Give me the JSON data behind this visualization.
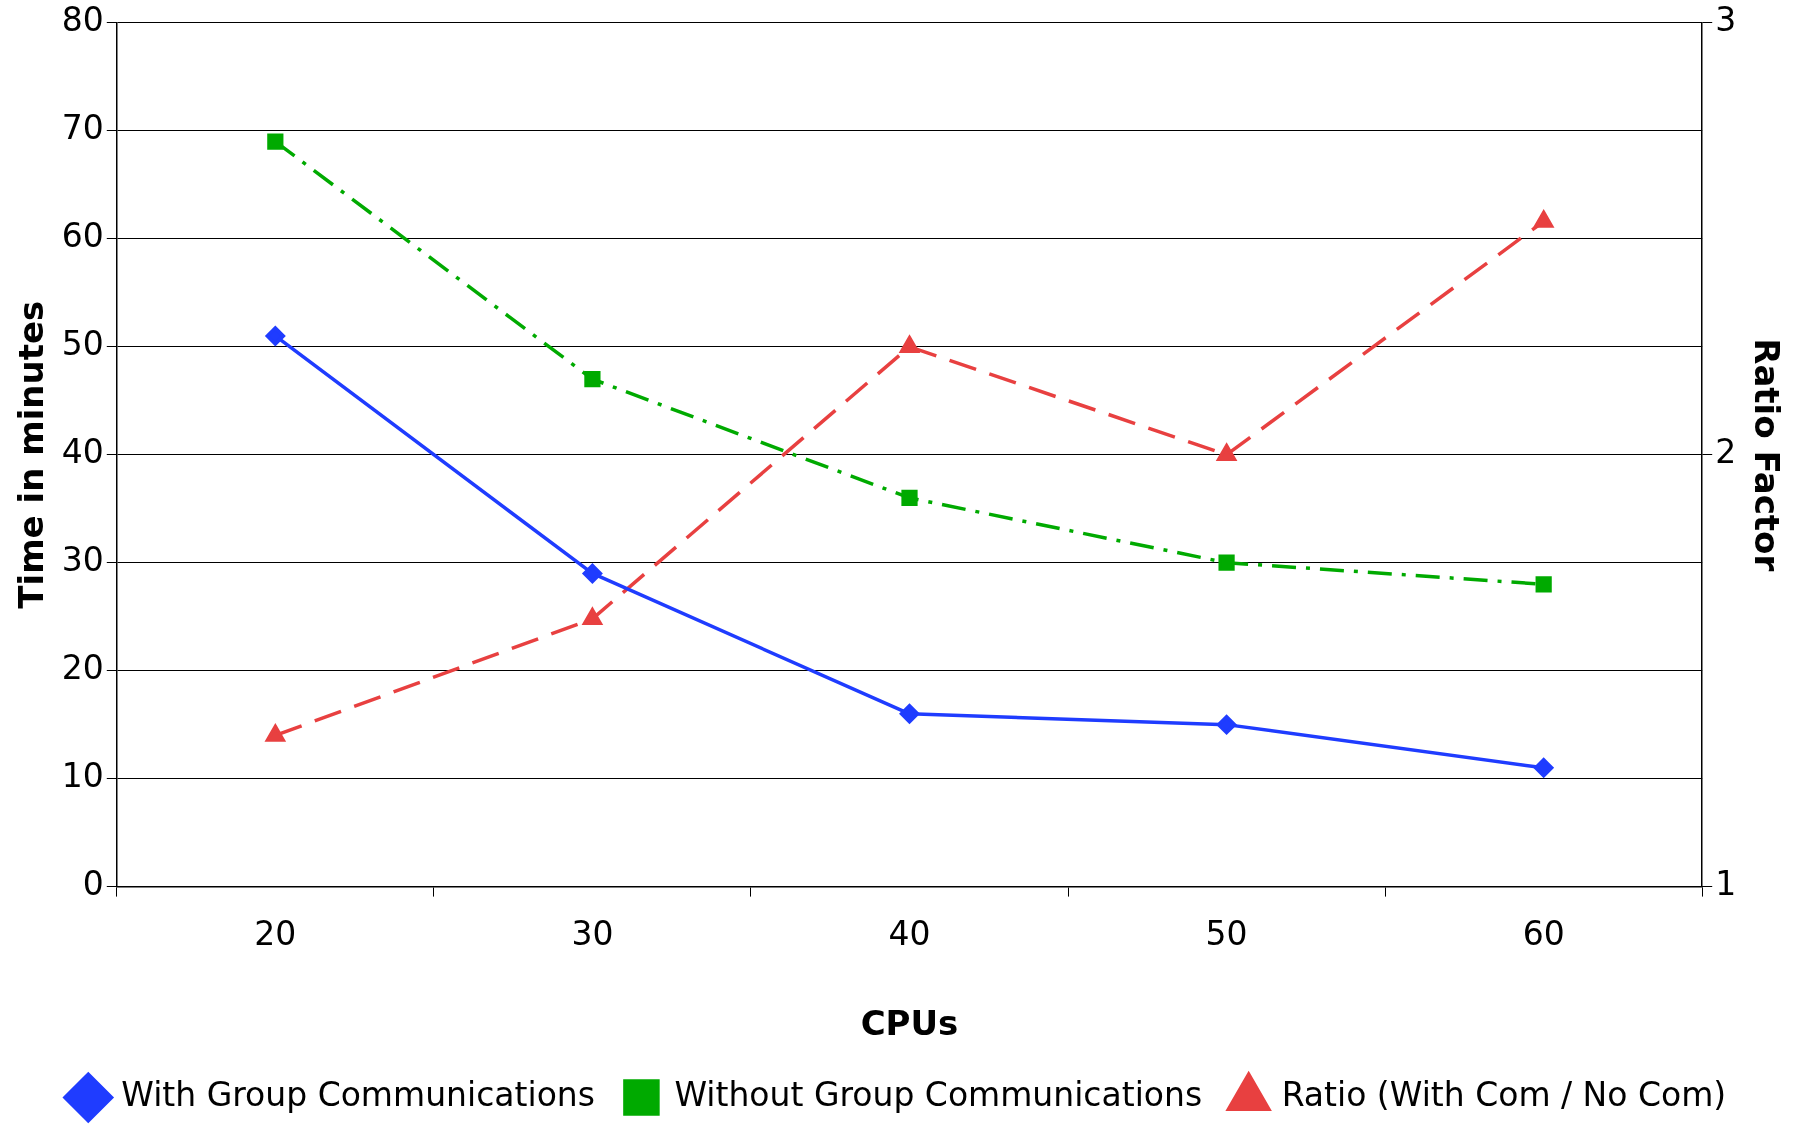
{
  "chart_data": {
    "type": "line",
    "xlabel": "CPUs",
    "ylabel": "Time in minutes",
    "y2label": "Ratio Factor",
    "categories": [
      "20",
      "30",
      "40",
      "50",
      "60"
    ],
    "series": [
      {
        "name": "With Group Communications",
        "color": "#1f3cff",
        "marker": "diamond",
        "line_style": "solid",
        "values": [
          51,
          29,
          16,
          15,
          11
        ]
      },
      {
        "name": "Without Group Communications",
        "color": "#00aa00",
        "marker": "square",
        "line_style": "dashdot",
        "values": [
          69,
          47,
          36,
          30,
          28
        ]
      },
      {
        "name": "Ratio (With Com / No Com)",
        "color": "#e84040",
        "marker": "triangle",
        "line_style": "dashed",
        "axis": "y2",
        "values": [
          1.35,
          1.62,
          2.25,
          2.0,
          2.54
        ]
      }
    ],
    "ylim": [
      0,
      80
    ],
    "yticks": [
      0,
      10,
      20,
      30,
      40,
      50,
      60,
      70,
      80
    ],
    "y2lim": [
      1,
      3
    ],
    "y2ticks": [
      1,
      2,
      3
    ],
    "grid": "y",
    "legend": "bottom"
  }
}
